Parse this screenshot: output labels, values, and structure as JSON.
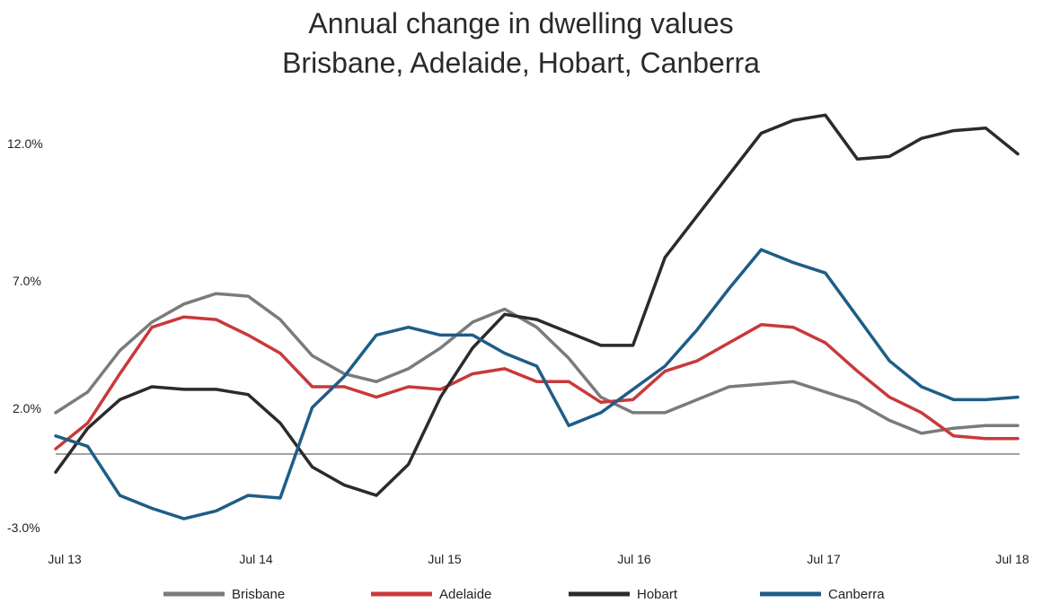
{
  "chart_data": {
    "type": "line",
    "title_line1": "Annual change in dwelling values",
    "title_line2": "Brisbane, Adelaide, Hobart, Canberra",
    "xlabel": "",
    "ylabel": "",
    "x_ticks": [
      "Jul 13",
      "Jul 14",
      "Jul 15",
      "Jul 16",
      "Jul 17",
      "Jul 18"
    ],
    "y_ticks": [
      "12.0%",
      "7.0%",
      "2.0%",
      "-3.0%"
    ],
    "y_tick_values": [
      12.0,
      7.0,
      2.0,
      -3.0
    ],
    "ylim": [
      -3.0,
      12.0
    ],
    "xlim": [
      0,
      60
    ],
    "zero_line": true,
    "legend_position": "bottom",
    "series": [
      {
        "name": "Brisbane",
        "color": "#7b7b7b",
        "x": [
          0,
          2,
          4,
          6,
          8,
          10,
          12,
          14,
          16,
          18,
          20,
          22,
          24,
          26,
          28,
          30,
          32,
          34,
          36,
          38,
          40,
          42,
          44,
          46,
          48,
          50,
          52,
          54,
          56,
          58,
          60
        ],
        "values": [
          1.6,
          2.4,
          4.0,
          5.1,
          5.8,
          6.2,
          6.1,
          5.2,
          3.8,
          3.1,
          2.8,
          3.3,
          4.1,
          5.1,
          5.6,
          4.9,
          3.7,
          2.2,
          1.6,
          1.6,
          2.1,
          2.6,
          2.7,
          2.8,
          2.4,
          2.0,
          1.3,
          0.8,
          1.0,
          1.1,
          1.1
        ]
      },
      {
        "name": "Adelaide",
        "color": "#c9393b",
        "x": [
          0,
          2,
          4,
          6,
          8,
          10,
          12,
          14,
          16,
          18,
          20,
          22,
          24,
          26,
          28,
          30,
          32,
          34,
          36,
          38,
          40,
          42,
          44,
          46,
          48,
          50,
          52,
          54,
          56,
          58,
          60
        ],
        "values": [
          0.2,
          1.2,
          3.1,
          4.9,
          5.3,
          5.2,
          4.6,
          3.9,
          2.6,
          2.6,
          2.2,
          2.6,
          2.5,
          3.1,
          3.3,
          2.8,
          2.8,
          2.0,
          2.1,
          3.2,
          3.6,
          4.3,
          5.0,
          4.9,
          4.3,
          3.2,
          2.2,
          1.6,
          0.7,
          0.6,
          0.6
        ]
      },
      {
        "name": "Hobart",
        "color": "#2b2b2b",
        "x": [
          0,
          2,
          4,
          6,
          8,
          10,
          12,
          14,
          16,
          18,
          20,
          22,
          24,
          26,
          28,
          30,
          32,
          34,
          36,
          38,
          40,
          42,
          44,
          46,
          48,
          50,
          52,
          54,
          56,
          58,
          60
        ],
        "values": [
          -0.7,
          1.0,
          2.1,
          2.6,
          2.5,
          2.5,
          2.3,
          1.2,
          -0.5,
          -1.2,
          -1.6,
          -0.4,
          2.2,
          4.1,
          5.4,
          5.2,
          4.7,
          4.2,
          4.2,
          7.6,
          9.2,
          10.8,
          12.4,
          12.9,
          13.1,
          11.4,
          11.5,
          12.2,
          12.5,
          12.6,
          11.6
        ]
      },
      {
        "name": "Canberra",
        "color": "#1f5d86",
        "x": [
          0,
          2,
          4,
          6,
          8,
          10,
          12,
          14,
          16,
          18,
          20,
          22,
          24,
          26,
          28,
          30,
          32,
          34,
          36,
          38,
          40,
          42,
          44,
          46,
          48,
          50,
          52,
          54,
          56,
          58,
          60
        ],
        "values": [
          0.7,
          0.3,
          -1.6,
          -2.1,
          -2.5,
          -2.2,
          -1.6,
          -1.7,
          1.8,
          3.0,
          4.6,
          4.9,
          4.6,
          4.6,
          3.9,
          3.4,
          1.1,
          1.6,
          2.5,
          3.4,
          4.8,
          6.4,
          7.9,
          7.4,
          7.0,
          5.3,
          3.6,
          2.6,
          2.1,
          2.1,
          2.2
        ]
      }
    ]
  }
}
